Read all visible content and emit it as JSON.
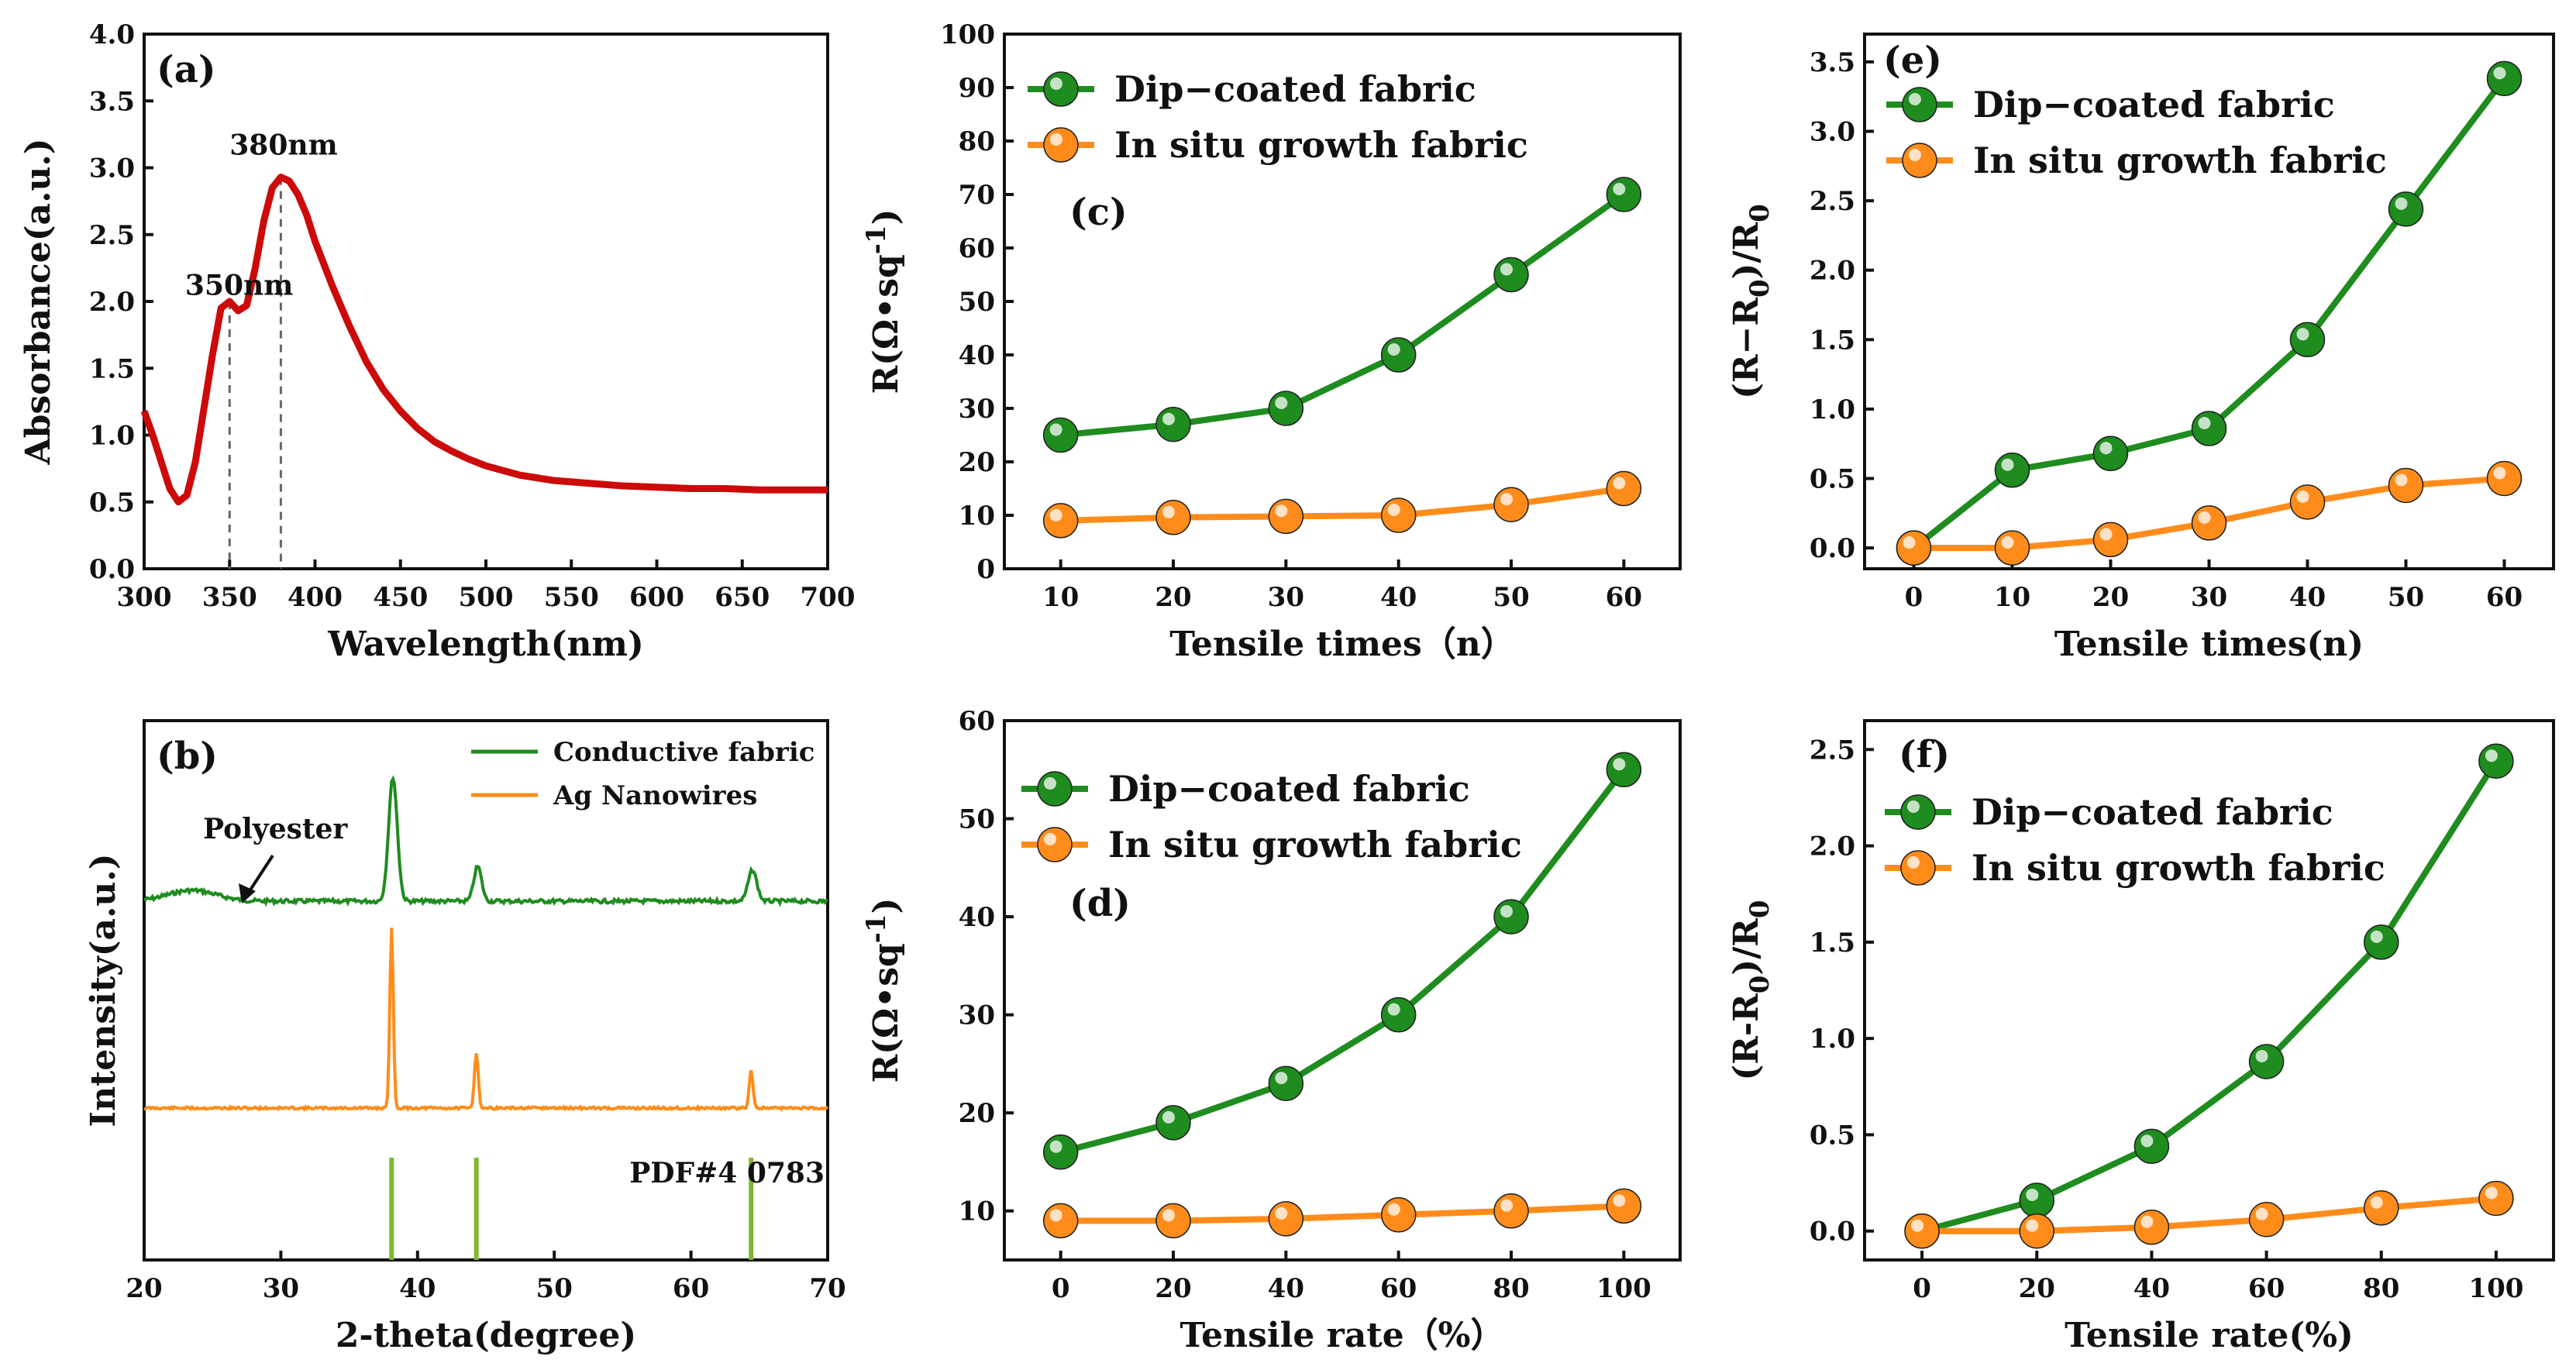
{
  "colors": {
    "green": "#1e8c1e",
    "orange": "#ff8c1a",
    "red": "#cc0a0a",
    "bar": "#7fb82e",
    "axis": "#111111"
  },
  "chart_data": [
    {
      "id": "a",
      "type": "line",
      "panel_label": "(a)",
      "xlabel": "Wavelength(nm)",
      "ylabel": "Absorbance(a.u.)",
      "xlim": [
        300,
        700
      ],
      "ylim": [
        0,
        4.0
      ],
      "xticks": [
        300,
        350,
        400,
        450,
        500,
        550,
        600,
        650,
        700
      ],
      "yticks": [
        0.0,
        0.5,
        1.0,
        1.5,
        2.0,
        2.5,
        3.0,
        3.5,
        4.0
      ],
      "ytick_labels": [
        "0.0",
        "0.5",
        "1.0",
        "1.5",
        "2.0",
        "2.5",
        "3.0",
        "3.5",
        "4.0"
      ],
      "series": [
        {
          "name": "Absorbance",
          "color": "#cc0a0a",
          "x": [
            300,
            305,
            310,
            315,
            320,
            325,
            330,
            335,
            340,
            345,
            350,
            355,
            360,
            365,
            370,
            375,
            380,
            385,
            390,
            395,
            400,
            410,
            420,
            430,
            440,
            450,
            460,
            470,
            480,
            490,
            500,
            520,
            540,
            560,
            580,
            600,
            620,
            640,
            660,
            680,
            700
          ],
          "y": [
            1.18,
            1.0,
            0.8,
            0.6,
            0.5,
            0.55,
            0.8,
            1.2,
            1.6,
            1.95,
            2.0,
            1.93,
            1.97,
            2.25,
            2.6,
            2.85,
            2.93,
            2.9,
            2.8,
            2.65,
            2.45,
            2.12,
            1.82,
            1.55,
            1.34,
            1.18,
            1.05,
            0.95,
            0.88,
            0.82,
            0.77,
            0.7,
            0.66,
            0.64,
            0.62,
            0.61,
            0.6,
            0.6,
            0.59,
            0.59,
            0.59
          ]
        }
      ],
      "annotations": [
        {
          "text": "350nm",
          "x": 350,
          "y": 2.0
        },
        {
          "text": "380nm",
          "x": 380,
          "y": 2.93
        }
      ]
    },
    {
      "id": "b",
      "type": "line",
      "panel_label": "(b)",
      "xlabel": "2-theta(degree)",
      "ylabel": "Intensity(a.u.)",
      "xlim": [
        20,
        70
      ],
      "xticks": [
        20,
        30,
        40,
        50,
        60,
        70
      ],
      "series": [
        {
          "name": "Conductive fabric",
          "color": "#1e8c1e",
          "peaks": [
            38.2,
            44.4,
            64.5
          ]
        },
        {
          "name": "Ag Nanowires",
          "color": "#ff8c1a",
          "peaks": [
            38.1,
            44.3,
            64.4
          ]
        }
      ],
      "reference": {
        "name": "PDF#4 0783",
        "positions": [
          38.1,
          44.3,
          64.4
        ]
      },
      "annotations": [
        {
          "text": "Polyester",
          "x": 27,
          "arrow": true
        }
      ]
    },
    {
      "id": "c",
      "type": "line",
      "panel_label": "(c)",
      "xlabel": "Tensile times（n）",
      "ylabel": "R(Ω•sq",
      "ylabel_sup": "-1",
      "ylabel_end": ")",
      "xlim": [
        5,
        65
      ],
      "ylim": [
        0,
        100
      ],
      "xticks": [
        10,
        20,
        30,
        40,
        50,
        60
      ],
      "yticks": [
        0,
        10,
        20,
        30,
        40,
        50,
        60,
        70,
        80,
        90,
        100
      ],
      "ytick_labels": [
        "0",
        "10",
        "20",
        "30",
        "40",
        "50",
        "60",
        "70",
        "80",
        "90",
        "100"
      ],
      "legend": "top-left",
      "series": [
        {
          "name": "Dip−coated fabric",
          "color": "#1e8c1e",
          "x": [
            10,
            20,
            30,
            40,
            50,
            60
          ],
          "y": [
            25,
            27,
            30,
            40,
            55,
            70
          ]
        },
        {
          "name": "In situ growth fabric",
          "color": "#ff8c1a",
          "x": [
            10,
            20,
            30,
            40,
            50,
            60
          ],
          "y": [
            9,
            9.6,
            9.8,
            10,
            12,
            15
          ]
        }
      ]
    },
    {
      "id": "d",
      "type": "line",
      "panel_label": "(d)",
      "xlabel": "Tensile rate（%）",
      "ylabel": "R(Ω•sq",
      "ylabel_sup": "-1",
      "ylabel_end": ")",
      "xlim": [
        -10,
        110
      ],
      "ylim": [
        5,
        60
      ],
      "xticks": [
        0,
        20,
        40,
        60,
        80,
        100
      ],
      "yticks": [
        10,
        20,
        30,
        40,
        50,
        60
      ],
      "ytick_labels": [
        "10",
        "20",
        "30",
        "40",
        "50",
        "60"
      ],
      "legend": "top-left",
      "series": [
        {
          "name": "Dip−coated fabric",
          "color": "#1e8c1e",
          "x": [
            0,
            20,
            40,
            60,
            80,
            100
          ],
          "y": [
            16,
            19,
            23,
            30,
            40,
            55
          ]
        },
        {
          "name": "In situ growth fabric",
          "color": "#ff8c1a",
          "x": [
            0,
            20,
            40,
            60,
            80,
            100
          ],
          "y": [
            9,
            9,
            9.2,
            9.6,
            10,
            10.5
          ]
        }
      ]
    },
    {
      "id": "e",
      "type": "line",
      "panel_label": "(e)",
      "xlabel": "Tensile times(n)",
      "ylabel": "(R−R",
      "ylabel_sub": "0",
      "ylabel_end": ")/R",
      "ylabel_sub2": "0",
      "xlim": [
        -5,
        65
      ],
      "ylim": [
        -0.15,
        3.7
      ],
      "xticks": [
        0,
        10,
        20,
        30,
        40,
        50,
        60
      ],
      "yticks": [
        0,
        0.5,
        1.0,
        1.5,
        2.0,
        2.5,
        3.0,
        3.5
      ],
      "ytick_labels": [
        "0.0",
        "0.5",
        "1.0",
        "1.5",
        "2.0",
        "2.5",
        "3.0",
        "3.5"
      ],
      "legend": "top-left",
      "series": [
        {
          "name": "Dip−coated fabric",
          "color": "#1e8c1e",
          "x": [
            0,
            10,
            20,
            30,
            40,
            50,
            60
          ],
          "y": [
            0,
            0.56,
            0.68,
            0.86,
            1.5,
            2.44,
            3.38
          ]
        },
        {
          "name": "In situ growth fabric",
          "color": "#ff8c1a",
          "x": [
            0,
            10,
            20,
            30,
            40,
            50,
            60
          ],
          "y": [
            0,
            0,
            0.06,
            0.18,
            0.33,
            0.45,
            0.5
          ]
        }
      ]
    },
    {
      "id": "f",
      "type": "line",
      "panel_label": "(f)",
      "xlabel": "Tensile rate(%)",
      "ylabel": "(R-R",
      "ylabel_sub": "0",
      "ylabel_end": ")/R",
      "ylabel_sub2": "0",
      "xlim": [
        -10,
        110
      ],
      "ylim": [
        -0.15,
        2.65
      ],
      "xticks": [
        0,
        20,
        40,
        60,
        80,
        100
      ],
      "yticks": [
        0,
        0.5,
        1.0,
        1.5,
        2.0,
        2.5
      ],
      "ytick_labels": [
        "0.0",
        "0.5",
        "1.0",
        "1.5",
        "2.0",
        "2.5"
      ],
      "legend": "top-left",
      "series": [
        {
          "name": "Dip−coated fabric",
          "color": "#1e8c1e",
          "x": [
            0,
            20,
            40,
            60,
            80,
            100
          ],
          "y": [
            0,
            0.16,
            0.44,
            0.88,
            1.5,
            2.44
          ]
        },
        {
          "name": "In situ growth fabric",
          "color": "#ff8c1a",
          "x": [
            0,
            20,
            40,
            60,
            80,
            100
          ],
          "y": [
            0,
            0,
            0.02,
            0.06,
            0.12,
            0.17
          ]
        }
      ]
    }
  ]
}
